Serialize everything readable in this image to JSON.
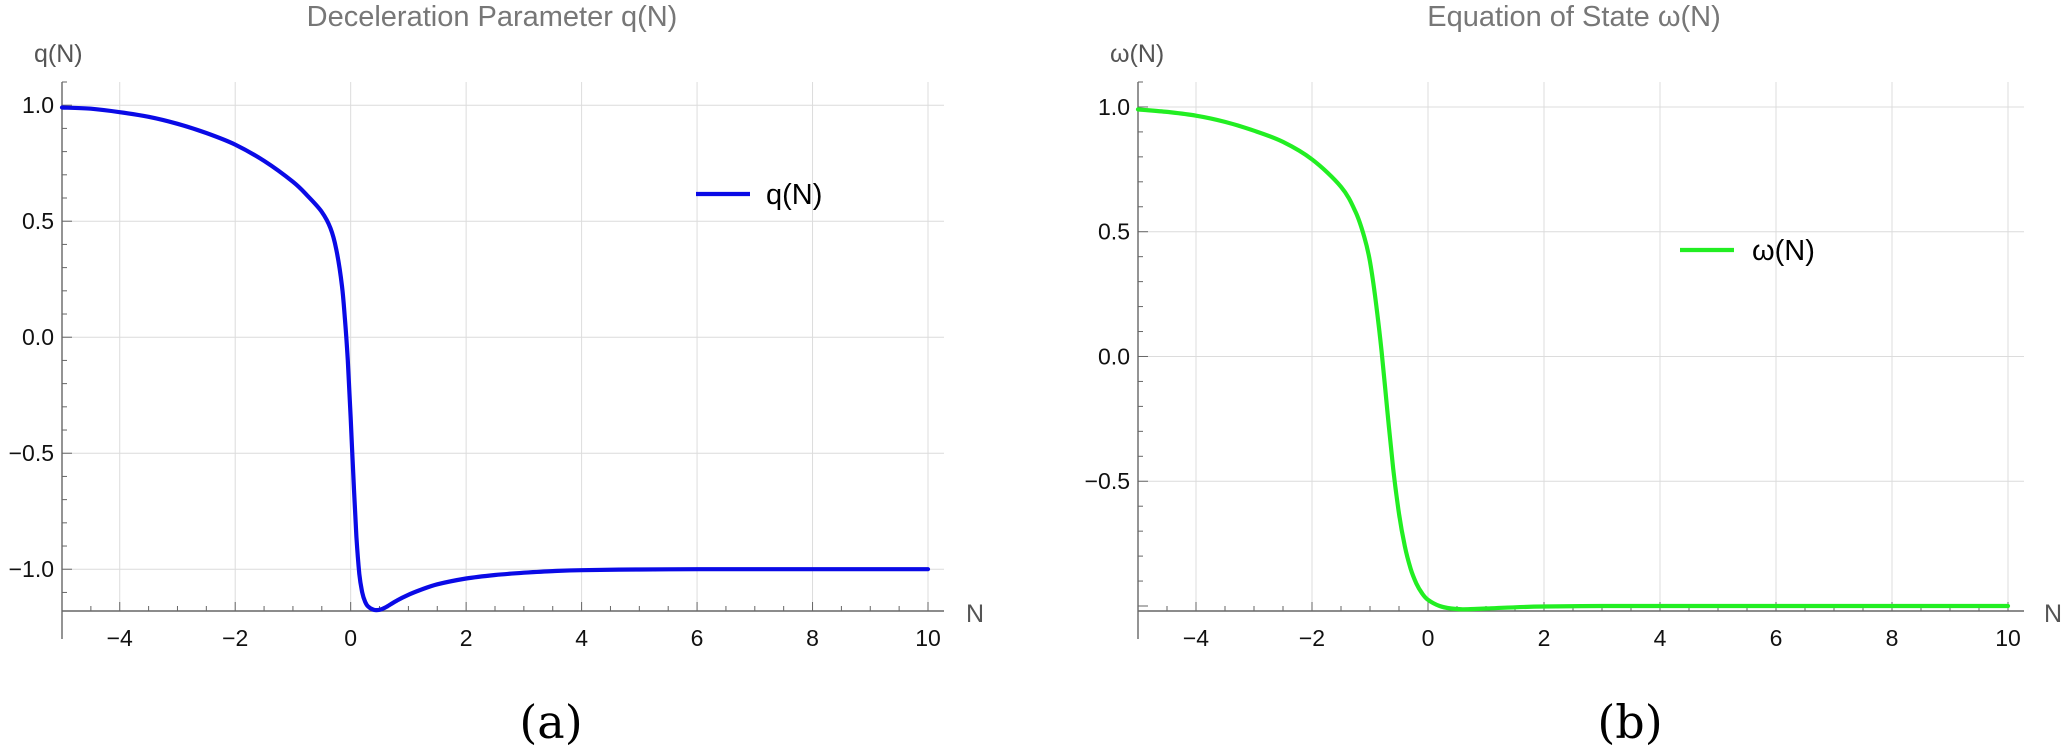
{
  "chart_data": [
    {
      "type": "line",
      "title": "Deceleration Parameter q(N)",
      "xlabel": "N",
      "ylabel": "q(N)",
      "caption": "(a)",
      "xlim": [
        -5,
        10
      ],
      "ylim": [
        -1.18,
        1.1
      ],
      "x_ticks": [
        -4,
        -2,
        0,
        2,
        4,
        6,
        8,
        10
      ],
      "x_tick_labels": [
        "−4",
        "−2",
        "0",
        "2",
        "4",
        "6",
        "8",
        "10"
      ],
      "y_ticks": [
        1.0,
        0.5,
        0.0,
        -0.5,
        -1.0
      ],
      "y_tick_labels": [
        "1.0",
        "0.5",
        "0.0",
        "−0.5",
        "−1.0"
      ],
      "grid": true,
      "legend_position": "top-right",
      "series": [
        {
          "name": "q(N)",
          "color": "#0a0ae6",
          "x": [
            -5,
            -4.5,
            -4,
            -3.5,
            -3,
            -2.5,
            -2,
            -1.5,
            -1,
            -0.75,
            -0.5,
            -0.35,
            -0.25,
            -0.15,
            -0.1,
            -0.05,
            0,
            0.05,
            0.1,
            0.15,
            0.2,
            0.25,
            0.3,
            0.4,
            0.5,
            0.6,
            0.7,
            0.8,
            1.0,
            1.2,
            1.5,
            2,
            2.5,
            3,
            3.5,
            4,
            5,
            6,
            7,
            8,
            9,
            10
          ],
          "y": [
            0.99,
            0.985,
            0.97,
            0.95,
            0.92,
            0.88,
            0.83,
            0.76,
            0.67,
            0.61,
            0.54,
            0.47,
            0.38,
            0.22,
            0.08,
            -0.1,
            -0.35,
            -0.62,
            -0.86,
            -1.02,
            -1.1,
            -1.14,
            -1.16,
            -1.175,
            -1.175,
            -1.165,
            -1.15,
            -1.135,
            -1.11,
            -1.09,
            -1.065,
            -1.04,
            -1.025,
            -1.015,
            -1.008,
            -1.004,
            -1.001,
            -1.0,
            -1.0,
            -1.0,
            -1.0,
            -1.0
          ]
        }
      ]
    },
    {
      "type": "line",
      "title": "Equation of State ω(N)",
      "xlabel": "N",
      "ylabel": "ω(N)",
      "caption": "(b)",
      "xlim": [
        -5,
        10
      ],
      "ylim": [
        -1.02,
        1.1
      ],
      "x_ticks": [
        -4,
        -2,
        0,
        2,
        4,
        6,
        8,
        10
      ],
      "x_tick_labels": [
        "−4",
        "−2",
        "0",
        "2",
        "4",
        "6",
        "8",
        "10"
      ],
      "y_ticks": [
        1.0,
        0.5,
        0.0,
        -0.5
      ],
      "y_tick_labels": [
        "1.0",
        "0.5",
        "0.0",
        "−0.5"
      ],
      "grid": true,
      "legend_position": "top-right",
      "series": [
        {
          "name": "ω(N)",
          "color": "#22ee22",
          "x": [
            -5,
            -4.5,
            -4,
            -3.5,
            -3,
            -2.5,
            -2,
            -1.5,
            -1.25,
            -1.1,
            -1.0,
            -0.9,
            -0.8,
            -0.7,
            -0.6,
            -0.5,
            -0.4,
            -0.3,
            -0.2,
            -0.1,
            0,
            0.2,
            0.4,
            0.6,
            0.8,
            1.0,
            1.5,
            2,
            3,
            4,
            5,
            6,
            7,
            8,
            9,
            10
          ],
          "y": [
            0.99,
            0.98,
            0.965,
            0.94,
            0.905,
            0.86,
            0.79,
            0.68,
            0.58,
            0.48,
            0.38,
            0.22,
            0.02,
            -0.22,
            -0.45,
            -0.63,
            -0.76,
            -0.85,
            -0.91,
            -0.95,
            -0.975,
            -1.0,
            -1.01,
            -1.013,
            -1.012,
            -1.01,
            -1.005,
            -1.002,
            -1.0,
            -1.0,
            -1.0,
            -1.0,
            -1.0,
            -1.0,
            -1.0,
            -1.0
          ]
        }
      ]
    }
  ]
}
